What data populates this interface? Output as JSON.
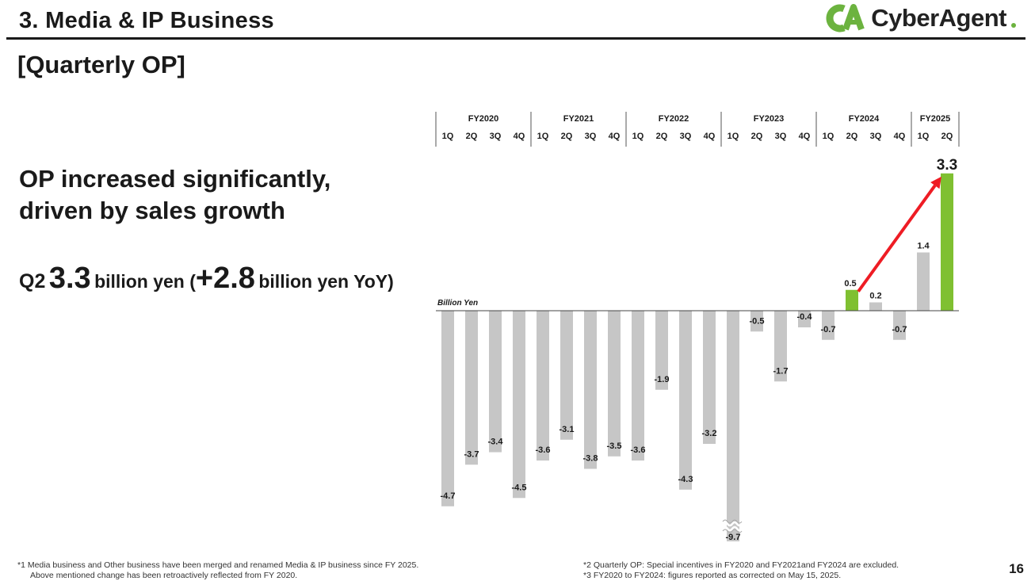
{
  "header": {
    "section_title": "3.  Media & IP Business",
    "subtitle": "[Quarterly OP]",
    "logo_text": "CyberAgent"
  },
  "headline": {
    "line1": "OP increased significantly,",
    "line2": "driven by sales growth"
  },
  "kpi": {
    "quarter": "Q2",
    "value": "3.3",
    "unit1": "billion yen (",
    "yoy": "+2.8",
    "unit2": "billion yen YoY)"
  },
  "footnotes": {
    "n1_a": "*1  Media business and Other business have been merged and renamed Media & IP business since FY 2025.",
    "n1_b": "Above mentioned change has been retroactively reflected from FY 2020.",
    "n2": "*2  Quarterly OP: Special incentives in FY2020 and FY2021and FY2024 are excluded.",
    "n3": "*3  FY2020 to FY2024: figures reported as corrected on May 15, 2025."
  },
  "page_number": "16",
  "colors": {
    "bar_gray": "#c6c6c6",
    "bar_green": "#7fc031",
    "arrow_red": "#ee1c24",
    "text": "#1a1a1a"
  },
  "chart_data": {
    "type": "bar",
    "unit_label": "Billion Yen",
    "fiscal_years": [
      {
        "name": "FY2020",
        "quarters": [
          "1Q",
          "2Q",
          "3Q",
          "4Q"
        ]
      },
      {
        "name": "FY2021",
        "quarters": [
          "1Q",
          "2Q",
          "3Q",
          "4Q"
        ]
      },
      {
        "name": "FY2022",
        "quarters": [
          "1Q",
          "2Q",
          "3Q",
          "4Q"
        ]
      },
      {
        "name": "FY2023",
        "quarters": [
          "1Q",
          "2Q",
          "3Q",
          "4Q"
        ]
      },
      {
        "name": "FY2024",
        "quarters": [
          "1Q",
          "2Q",
          "3Q",
          "4Q"
        ]
      },
      {
        "name": "FY2025",
        "quarters": [
          "1Q",
          "2Q"
        ]
      }
    ],
    "values": [
      -4.7,
      -3.7,
      -3.4,
      -4.5,
      -3.6,
      -3.1,
      -3.8,
      -3.5,
      -3.6,
      -1.9,
      -4.3,
      -3.2,
      -9.7,
      -0.5,
      -1.7,
      -0.4,
      -0.7,
      0.5,
      0.2,
      -0.7,
      1.4,
      3.3
    ],
    "labels": [
      "-4.7",
      "-3.7",
      "-3.4",
      "-4.5",
      "-3.6",
      "-3.1",
      "-3.8",
      "-3.5",
      "-3.6",
      "-1.9",
      "-4.3",
      "-3.2",
      "-9.7",
      "-0.5",
      "-1.7",
      "-0.4",
      "-0.7",
      "0.5",
      "0.2",
      "-0.7",
      "1.4",
      "3.3"
    ],
    "highlight_indices": [
      17,
      21
    ],
    "broken_axis_indices": [
      12
    ],
    "arrow": {
      "from_index": 17,
      "to_index": 21
    }
  }
}
